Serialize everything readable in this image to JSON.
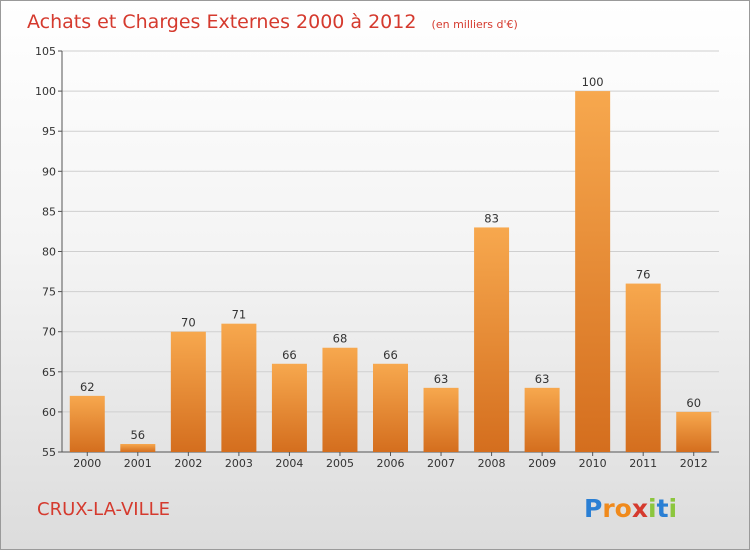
{
  "chart_data": {
    "type": "bar",
    "title": "Achats et Charges Externes 2000 à 2012",
    "subtitle": "(en milliers d'€)",
    "categories": [
      "2000",
      "2001",
      "2002",
      "2003",
      "2004",
      "2005",
      "2006",
      "2007",
      "2008",
      "2009",
      "2010",
      "2011",
      "2012"
    ],
    "values": [
      62,
      56,
      70,
      71,
      66,
      68,
      66,
      63,
      83,
      63,
      100,
      76,
      60
    ],
    "ylim": [
      55,
      105
    ],
    "yticks": [
      55,
      60,
      65,
      70,
      75,
      80,
      85,
      90,
      95,
      100,
      105
    ],
    "grid": true,
    "xlabel": "",
    "ylabel": "",
    "colors": {
      "bar_light": "#f7a84e",
      "bar_dark": "#d46e1e",
      "title": "#d53a2e",
      "grid": "#cfcfcf"
    }
  },
  "footer": {
    "town": "CRUX-LA-VILLE",
    "logo_letters": [
      "P",
      "r",
      "o",
      "x",
      "i",
      "t",
      "i"
    ],
    "logo_colors": [
      "#2a7fd4",
      "#f08a1c",
      "#f08a1c",
      "#d53a2e",
      "#8cc63e",
      "#2a7fd4",
      "#8cc63e"
    ]
  }
}
